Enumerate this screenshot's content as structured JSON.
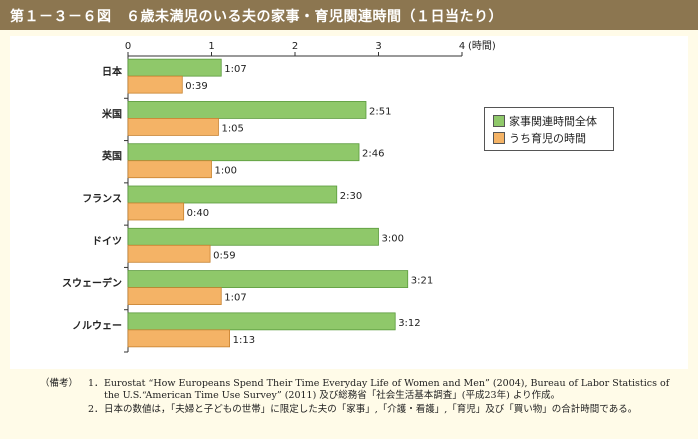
{
  "header": {
    "title": "第１－３－６図　６歳未満児のいる夫の家事・育児関連時間（１日当たり）"
  },
  "colors": {
    "header_bg": "#8c7650",
    "series_total": "#8fc86a",
    "series_child": "#f4b366",
    "page_bg": "#fffbe8"
  },
  "chart_data": {
    "type": "bar",
    "orientation": "horizontal",
    "categories": [
      "日本",
      "米国",
      "英国",
      "フランス",
      "ドイツ",
      "スウェーデン",
      "ノルウェー"
    ],
    "series": [
      {
        "name": "家事関連時間全体",
        "values": [
          1.1167,
          2.85,
          2.7667,
          2.5,
          3.0,
          3.35,
          3.2
        ],
        "labels": [
          "1:07",
          "2:51",
          "2:46",
          "2:30",
          "3:00",
          "3:21",
          "3:12"
        ]
      },
      {
        "name": "うち育児の時間",
        "values": [
          0.65,
          1.0833,
          1.0,
          0.6667,
          0.9833,
          1.1167,
          1.2167
        ],
        "labels": [
          "0:39",
          "1:05",
          "1:00",
          "0:40",
          "0:59",
          "1:07",
          "1:13"
        ]
      }
    ],
    "xticks": [
      "0",
      "1",
      "2",
      "3",
      "4"
    ],
    "xunit": "(時間)",
    "xlim": [
      0,
      4
    ],
    "legend_position": "top-right"
  },
  "notes": {
    "label": "（備考）",
    "items": [
      {
        "num": "1．",
        "text": "Eurostat “How Europeans Spend Their Time Everyday Life of Women and Men” (2004), Bureau of Labor Statistics of the U.S.“American Time Use Survey” (2011) 及び総務省「社会生活基本調査」(平成23年) より作成。"
      },
      {
        "num": "2．",
        "text": "日本の数値は，「夫婦と子どもの世帯」に限定した夫の「家事」,「介護・看護」,「育児」及び「買い物」の合計時間である。"
      }
    ]
  }
}
